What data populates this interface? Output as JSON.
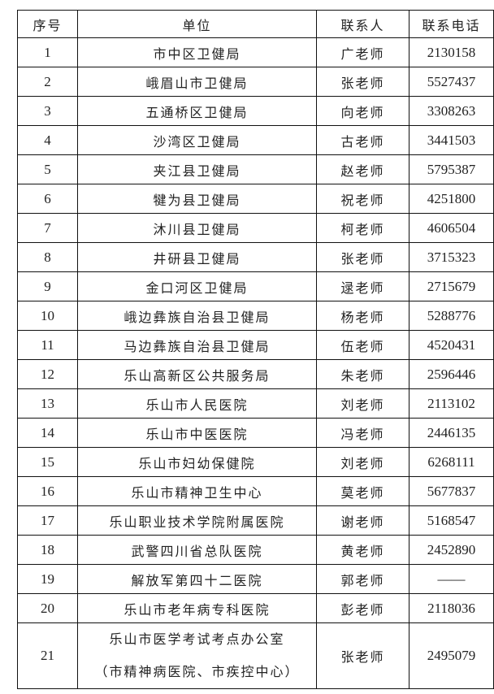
{
  "table": {
    "headers": [
      "序号",
      "单位",
      "联系人",
      "联系电话"
    ],
    "rows": [
      {
        "no": "1",
        "unit": "市中区卫健局",
        "contact": "广老师",
        "phone": "2130158"
      },
      {
        "no": "2",
        "unit": "峨眉山市卫健局",
        "contact": "张老师",
        "phone": "5527437"
      },
      {
        "no": "3",
        "unit": "五通桥区卫健局",
        "contact": "向老师",
        "phone": "3308263"
      },
      {
        "no": "4",
        "unit": "沙湾区卫健局",
        "contact": "古老师",
        "phone": "3441503"
      },
      {
        "no": "5",
        "unit": "夹江县卫健局",
        "contact": "赵老师",
        "phone": "5795387"
      },
      {
        "no": "6",
        "unit": "犍为县卫健局",
        "contact": "祝老师",
        "phone": "4251800"
      },
      {
        "no": "7",
        "unit": "沐川县卫健局",
        "contact": "柯老师",
        "phone": "4606504"
      },
      {
        "no": "8",
        "unit": "井研县卫健局",
        "contact": "张老师",
        "phone": "3715323"
      },
      {
        "no": "9",
        "unit": "金口河区卫健局",
        "contact": "逯老师",
        "phone": "2715679"
      },
      {
        "no": "10",
        "unit": "峨边彝族自治县卫健局",
        "contact": "杨老师",
        "phone": "5288776"
      },
      {
        "no": "11",
        "unit": "马边彝族自治县卫健局",
        "contact": "伍老师",
        "phone": "4520431"
      },
      {
        "no": "12",
        "unit": "乐山高新区公共服务局",
        "contact": "朱老师",
        "phone": "2596446"
      },
      {
        "no": "13",
        "unit": "乐山市人民医院",
        "contact": "刘老师",
        "phone": "2113102"
      },
      {
        "no": "14",
        "unit": "乐山市中医医院",
        "contact": "冯老师",
        "phone": "2446135"
      },
      {
        "no": "15",
        "unit": "乐山市妇幼保健院",
        "contact": "刘老师",
        "phone": "6268111"
      },
      {
        "no": "16",
        "unit": "乐山市精神卫生中心",
        "contact": "莫老师",
        "phone": "5677837"
      },
      {
        "no": "17",
        "unit": "乐山职业技术学院附属医院",
        "contact": "谢老师",
        "phone": "5168547"
      },
      {
        "no": "18",
        "unit": "武警四川省总队医院",
        "contact": "黄老师",
        "phone": "2452890"
      },
      {
        "no": "19",
        "unit": "解放军第四十二医院",
        "contact": "郭老师",
        "phone": "——"
      },
      {
        "no": "20",
        "unit": "乐山市老年病专科医院",
        "contact": "彭老师",
        "phone": "2118036"
      }
    ],
    "last_row": {
      "no": "21",
      "unit_line1": "乐山市医学考试考点办公室",
      "unit_line2": "（市精神病医院、市疾控中心）",
      "contact": "张老师",
      "phone": "2495079"
    }
  }
}
